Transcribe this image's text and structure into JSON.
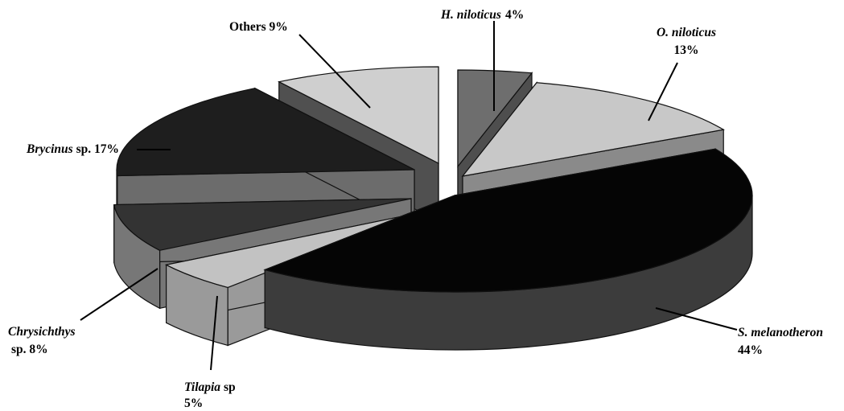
{
  "chart_data": {
    "type": "pie",
    "style": "3d-exploded",
    "title": "",
    "slices": [
      {
        "name": "H. niloticus",
        "value": 4,
        "label_species": "H. niloticus",
        "label_suffix": "",
        "label_pct": "4%",
        "top_color": "#6e6e6e",
        "side_color": "#4e4e4e"
      },
      {
        "name": "O. niloticus",
        "value": 13,
        "label_species": "O. niloticus",
        "label_suffix": "",
        "label_pct": "13%",
        "top_color": "#c8c8c8",
        "side_color": "#8a8a8a"
      },
      {
        "name": "S. melanotheron",
        "value": 44,
        "label_species": "S. melanotheron",
        "label_suffix": "",
        "label_pct": "44%",
        "top_color": "#050505",
        "side_color": "#3c3c3c"
      },
      {
        "name": "Tilapia sp",
        "value": 5,
        "label_species": "Tilapia",
        "label_suffix": " sp",
        "label_pct": "5%",
        "top_color": "#c2c2c2",
        "side_color": "#9a9a9a"
      },
      {
        "name": "Chrysichthys sp.",
        "value": 8,
        "label_species": "Chrysichthys",
        "label_suffix": "sp. 8%",
        "label_pct": "",
        "top_color": "#333333",
        "side_color": "#777777"
      },
      {
        "name": "Brycinus sp.",
        "value": 17,
        "label_species": "Brycinus",
        "label_suffix": " sp. 17%",
        "label_pct": "",
        "top_color": "#1e1e1e",
        "side_color": "#6c6c6c"
      },
      {
        "name": "Others",
        "value": 9,
        "label_species": "",
        "label_suffix": "Others 9%",
        "label_pct": "",
        "top_color": "#cfcfcf",
        "side_color": "#505050"
      }
    ],
    "legend": "none"
  }
}
